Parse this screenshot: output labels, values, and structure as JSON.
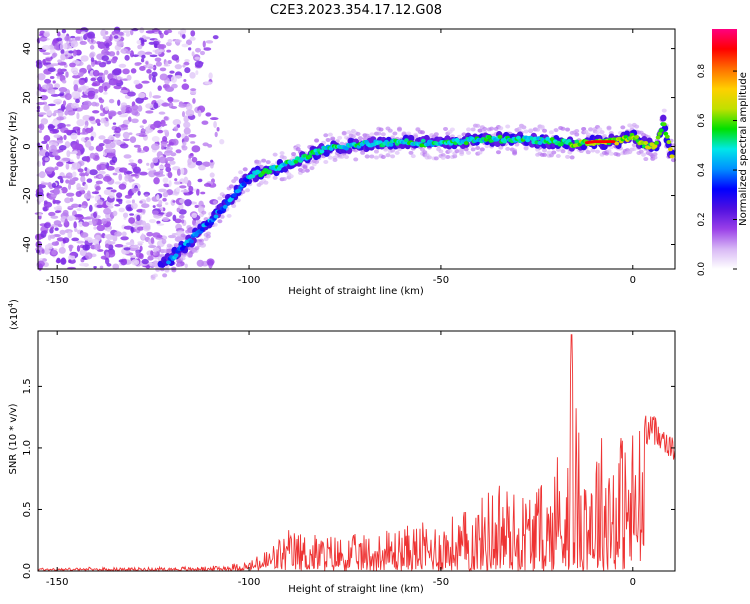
{
  "title": "C2E3.2023.354.17.12.G08",
  "chart_data": [
    {
      "type": "heatmap",
      "xlabel": "Height of straight line (km)",
      "ylabel": "Frequency (Hz)",
      "xlim": [
        -155,
        11
      ],
      "ylim": [
        -50,
        48
      ],
      "xticks": [
        -150,
        -100,
        -50,
        0
      ],
      "yticks": [
        -40,
        -20,
        0,
        20,
        40
      ],
      "colorbar": {
        "label": "Normalized spectral amplitude",
        "range": [
          0,
          0.97
        ],
        "ticks": [
          0.0,
          0.2,
          0.4,
          0.6,
          0.8
        ],
        "tick_labels": [
          "0.0",
          "0.2",
          "0.4",
          "0.6",
          "0.8"
        ],
        "colormap": [
          "#ffffff",
          "#d8b8f5",
          "#9a40e8",
          "#5010e0",
          "#0000ff",
          "#0090ff",
          "#00e8e8",
          "#00e000",
          "#c0e000",
          "#ffd000",
          "#ff7000",
          "#ff0000",
          "#ff0080"
        ]
      },
      "ridge": {
        "x": [
          -122,
          -115,
          -110,
          -105,
          -100,
          -95,
          -90,
          -85,
          -80,
          -70,
          -60,
          -50,
          -40,
          -30,
          -20,
          -15,
          -10,
          -5,
          -2,
          0,
          3,
          6,
          8,
          10
        ],
        "y": [
          -48,
          -38,
          -30,
          -22,
          -12,
          -10,
          -7,
          -4,
          -1,
          1,
          2,
          1,
          3,
          3,
          2,
          1,
          2,
          2,
          3,
          4,
          1,
          0,
          10,
          -3
        ]
      }
    },
    {
      "type": "line",
      "xlabel": "Height of straight line (km)",
      "ylabel": "SNR (10 * v/v)",
      "y_multiplier": "(x10",
      "y_multiplier_exp": "4",
      "y_multiplier_close": ")",
      "xlim": [
        -155,
        11
      ],
      "ylim": [
        0,
        1.95
      ],
      "xticks": [
        -150,
        -100,
        -50,
        0
      ],
      "yticks": [
        0.0,
        0.5,
        1.0,
        1.5
      ],
      "ytick_labels": [
        "0.0",
        "0.5",
        "1.0",
        "1.5"
      ],
      "series": [
        {
          "color": "#ee3333",
          "envelope": {
            "x": [
              -155,
              -130,
              -110,
              -100,
              -95,
              -90,
              -85,
              -80,
              -70,
              -60,
              -50,
              -45,
              -40,
              -35,
              -30,
              -25,
              -22,
              -20,
              -18,
              -16,
              -15,
              -12,
              -10,
              -5,
              0,
              2,
              5,
              8,
              11
            ],
            "y": [
              0.02,
              0.02,
              0.03,
              0.07,
              0.18,
              0.32,
              0.3,
              0.28,
              0.28,
              0.35,
              0.4,
              0.45,
              0.55,
              0.75,
              0.6,
              0.7,
              0.65,
              1.0,
              0.9,
              1.9,
              1.3,
              1.0,
              1.1,
              1.1,
              1.15,
              1.2,
              1.22,
              1.15,
              1.0
            ]
          }
        }
      ]
    }
  ]
}
